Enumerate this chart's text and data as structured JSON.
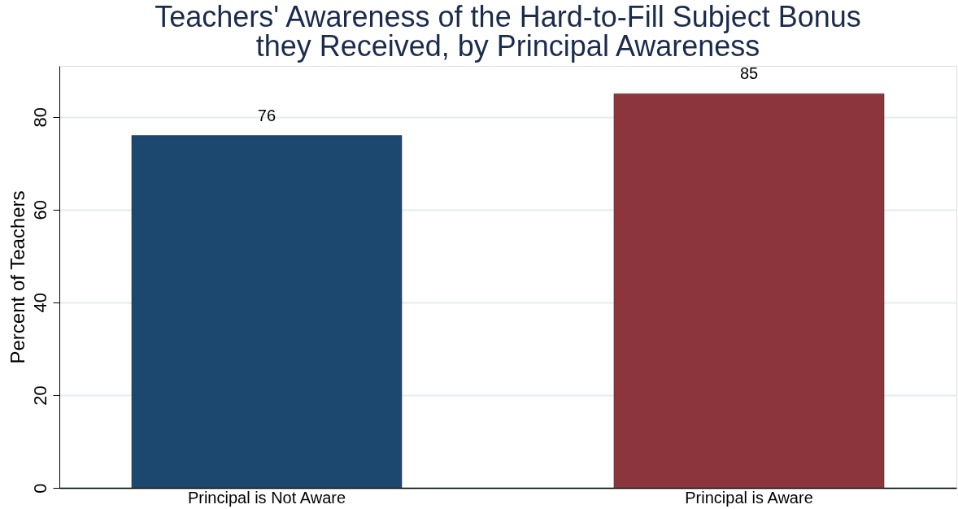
{
  "chart_data": {
    "type": "bar",
    "title": [
      "Teachers' Awareness of the Hard-to-Fill Subject Bonus",
      "they Received, by Principal Awareness"
    ],
    "ylabel": "Percent of Teachers",
    "categories": [
      "Principal is Not Aware",
      "Principal is Aware"
    ],
    "values": [
      76,
      85
    ],
    "colors": [
      "#1c476f",
      "#8d353c"
    ],
    "ylim": [
      0,
      91
    ],
    "yticks": [
      0,
      20,
      40,
      60,
      80
    ],
    "grid": "y",
    "data_labels": true
  }
}
